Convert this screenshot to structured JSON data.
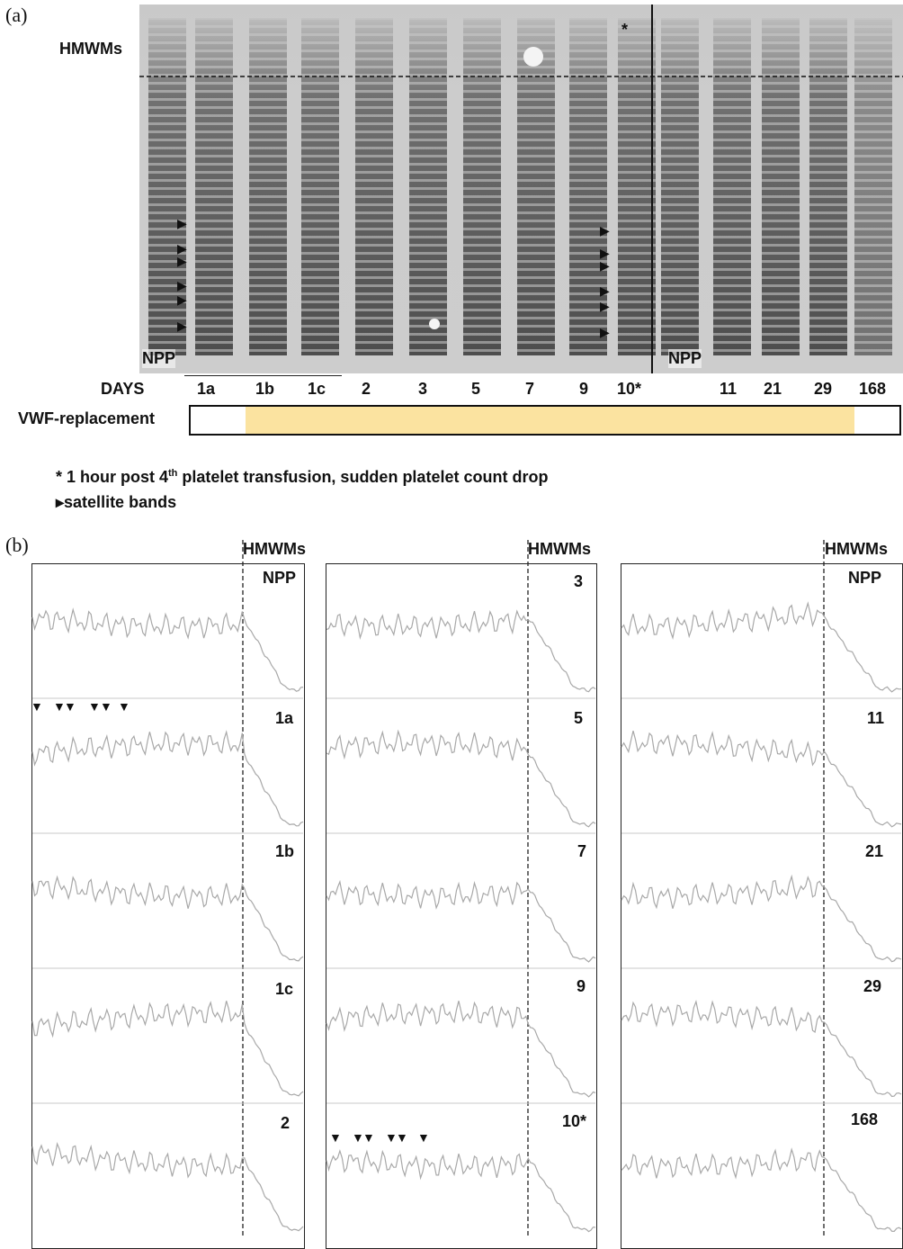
{
  "panel_a": {
    "label": "(a)",
    "hmwms_label": "HMWMs",
    "npp_left": "NPP",
    "npp_right": "NPP",
    "star_mark": "*",
    "days_label": "DAYS",
    "days": [
      "1a",
      "1b",
      "1c",
      "2",
      "3",
      "5",
      "7",
      "9",
      "10*",
      "11",
      "21",
      "29",
      "168"
    ],
    "vwf_label": "VWF-replacement",
    "vwf_color": "#fbe3a0",
    "footnote_star_pre": "* 1 hour post 4",
    "footnote_star_sup": "th",
    "footnote_star_post": " platelet transfusion, sudden platelet count drop",
    "footnote_triangle": "▸satellite bands"
  },
  "panel_b": {
    "label": "(b)",
    "hmwms_label": "HMWMs",
    "columns": [
      {
        "samples": [
          "NPP",
          "1a",
          "1b",
          "1c",
          "2"
        ]
      },
      {
        "samples": [
          "3",
          "5",
          "7",
          "9",
          "10*"
        ]
      },
      {
        "samples": [
          "NPP",
          "11",
          "21",
          "29",
          "168"
        ]
      }
    ]
  }
}
